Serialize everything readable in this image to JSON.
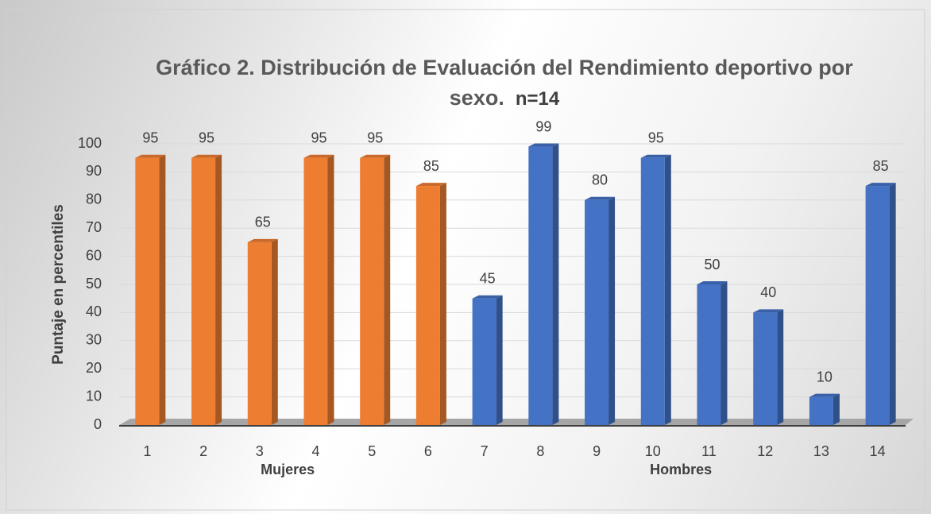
{
  "chart_data": {
    "type": "bar",
    "title": "Gráfico 2. Distribución de Evaluación del Rendimiento deportivo por sexo.",
    "subtitle": "n=14",
    "y_label": "Puntaje en percentiles",
    "categories": [
      "1",
      "2",
      "3",
      "4",
      "5",
      "6",
      "7",
      "8",
      "9",
      "10",
      "11",
      "12",
      "13",
      "14"
    ],
    "series": [
      {
        "name": "Mujeres",
        "color": "#ED7D31",
        "values": [
          95,
          95,
          65,
          95,
          95,
          85,
          null,
          null,
          null,
          null,
          null,
          null,
          null,
          null
        ]
      },
      {
        "name": "Hombres",
        "color": "#4472C4",
        "values": [
          null,
          null,
          null,
          null,
          null,
          null,
          45,
          99,
          80,
          95,
          50,
          40,
          10,
          85
        ]
      }
    ],
    "ylim": [
      0,
      100
    ],
    "yticks": [
      0,
      10,
      20,
      30,
      40,
      50,
      60,
      70,
      80,
      90,
      100
    ],
    "grid": true
  }
}
